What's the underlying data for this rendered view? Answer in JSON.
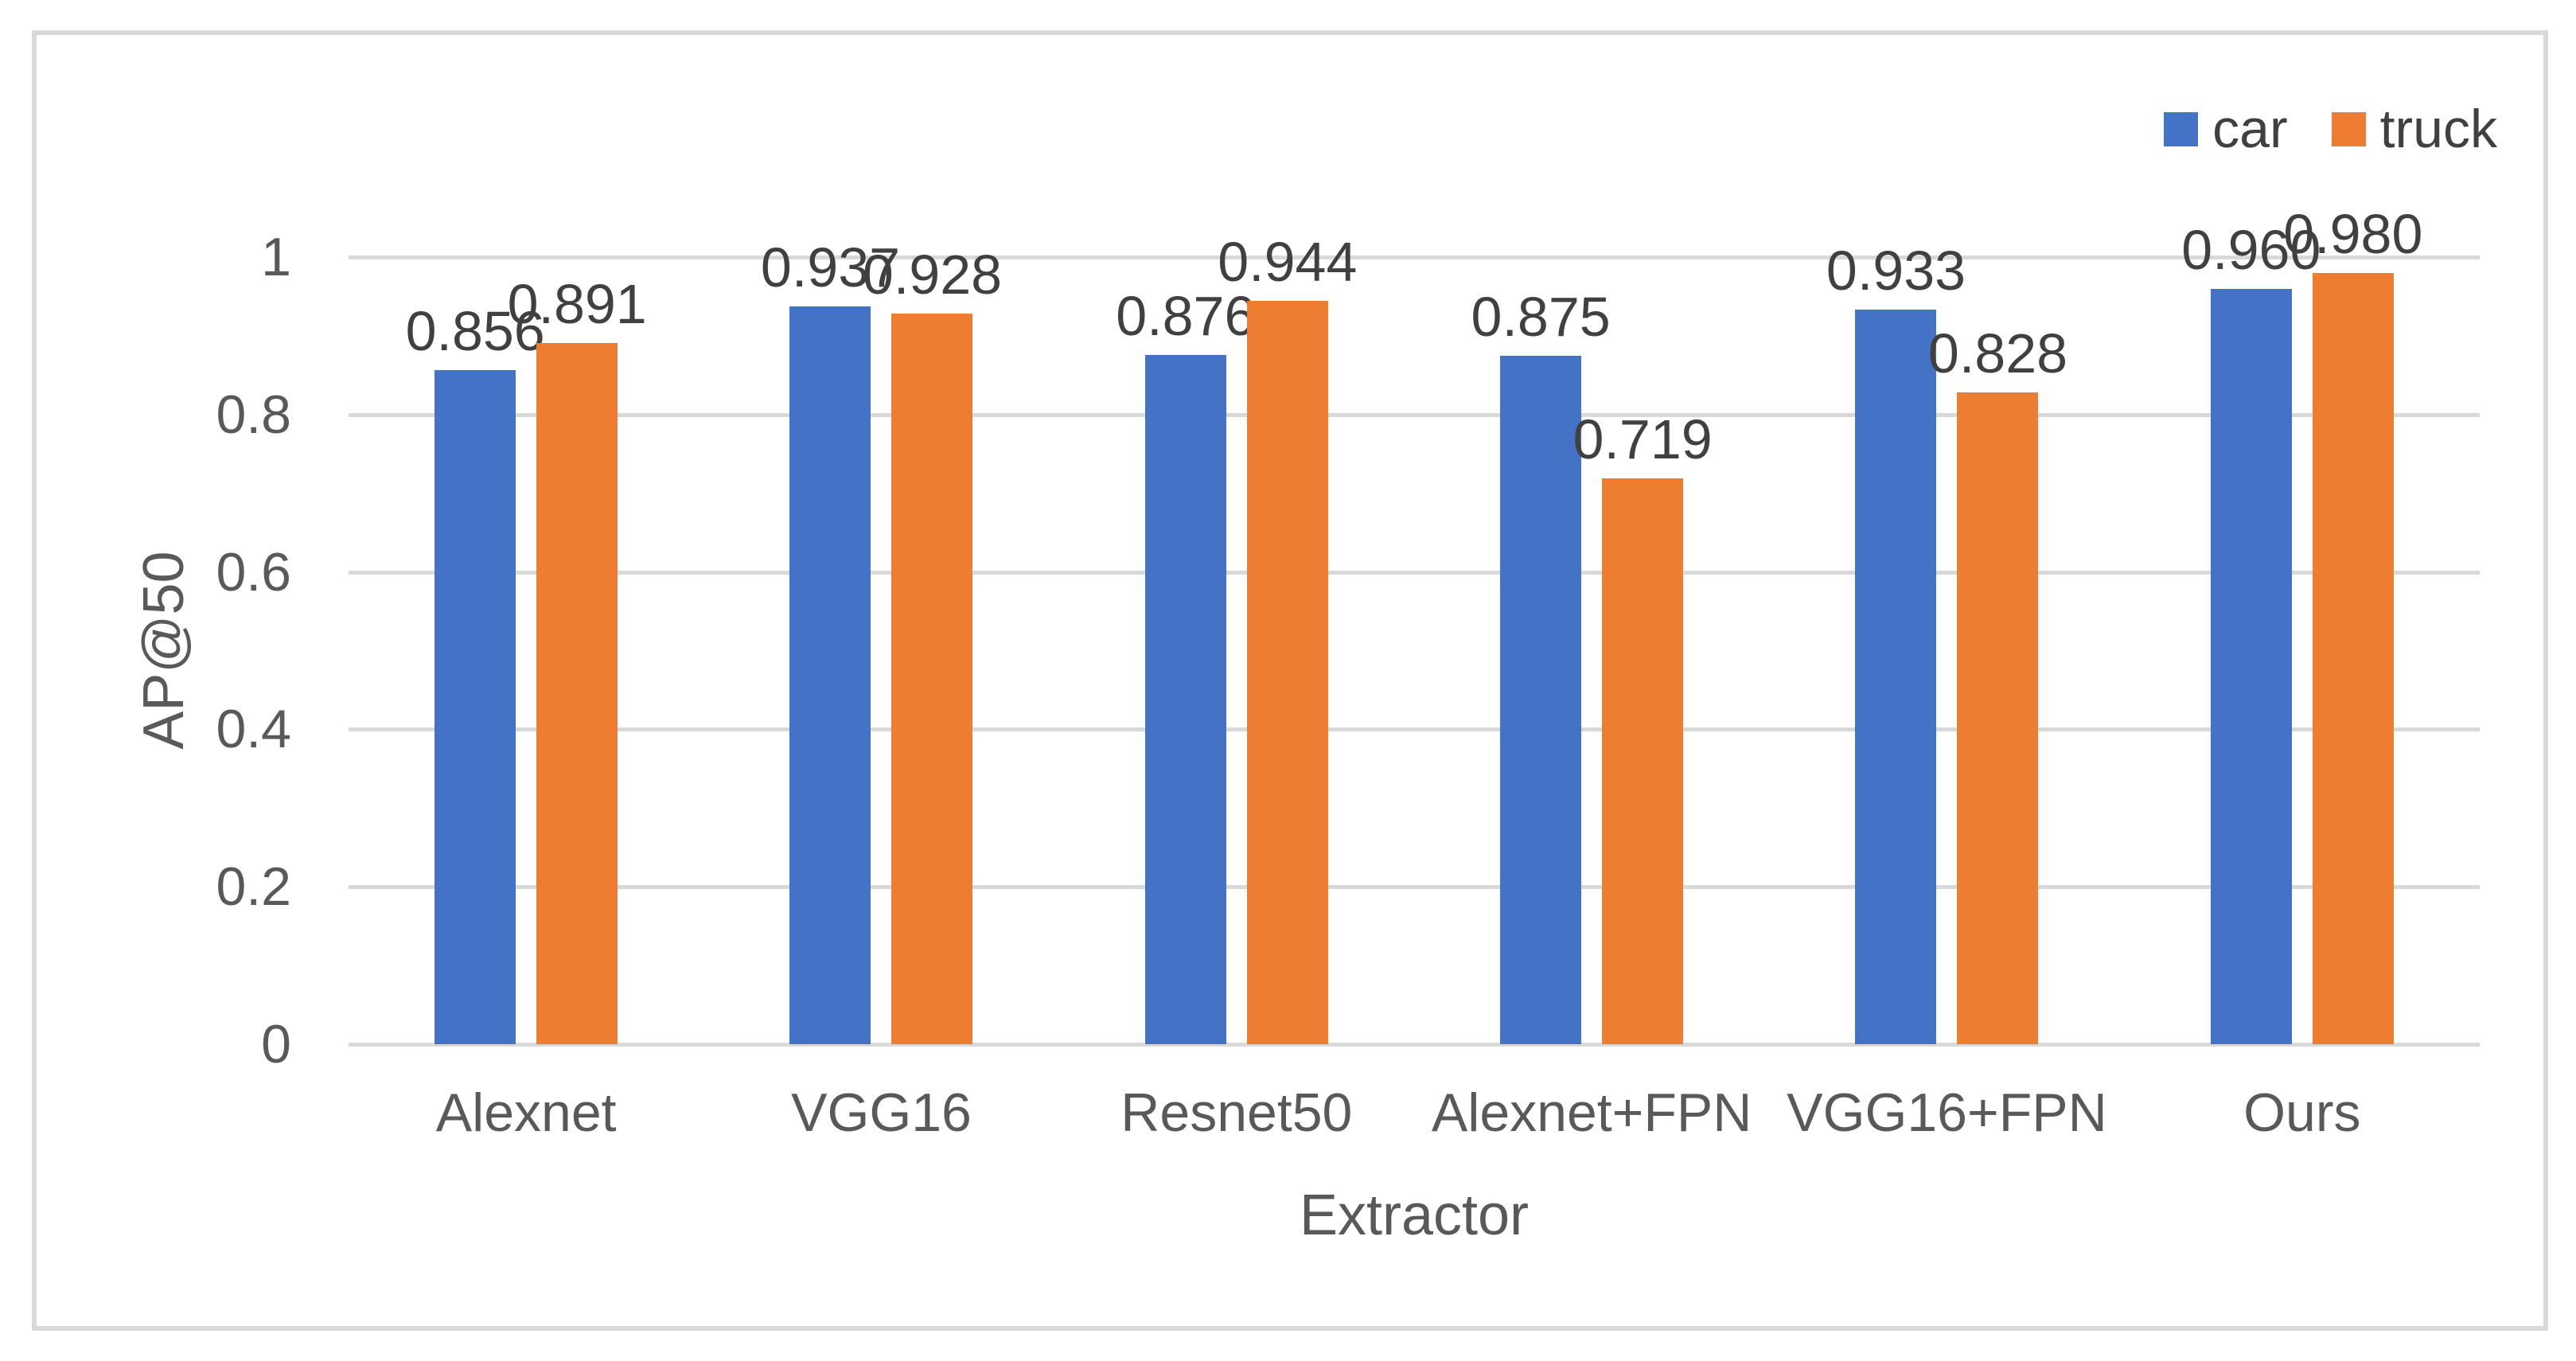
{
  "chart_data": {
    "type": "bar",
    "title": "",
    "xlabel": "Extractor",
    "ylabel": "AP@50",
    "categories": [
      "Alexnet",
      "VGG16",
      "Resnet50",
      "Alexnet+FPN",
      "VGG16+FPN",
      "Ours"
    ],
    "series": [
      {
        "name": "car",
        "color": "#4472C4",
        "values": [
          0.856,
          0.937,
          0.876,
          0.875,
          0.933,
          0.96
        ]
      },
      {
        "name": "truck",
        "color": "#ED7D31",
        "values": [
          0.891,
          0.928,
          0.944,
          0.719,
          0.828,
          0.98
        ]
      }
    ],
    "data_labels": [
      [
        "0.856",
        "0.937",
        "0.876",
        "0.875",
        "0.933",
        "0.960"
      ],
      [
        "0.891",
        "0.928",
        "0.944",
        "0.719",
        "0.828",
        "0.980"
      ]
    ],
    "ylim": [
      0,
      1
    ],
    "yticks": [
      {
        "value": 0,
        "label": "0"
      },
      {
        "value": 0.2,
        "label": "0.2"
      },
      {
        "value": 0.4,
        "label": "0.4"
      },
      {
        "value": 0.6,
        "label": "0.6"
      },
      {
        "value": 0.8,
        "label": "0.8"
      },
      {
        "value": 1,
        "label": "1"
      }
    ],
    "grid": true,
    "legend_position": "top-right",
    "colors": {
      "gridline": "#D9D9D9",
      "border": "#D9D9D9",
      "axis_text": "#595959",
      "data_label_text": "#404040",
      "background": "#FFFFFF"
    }
  }
}
